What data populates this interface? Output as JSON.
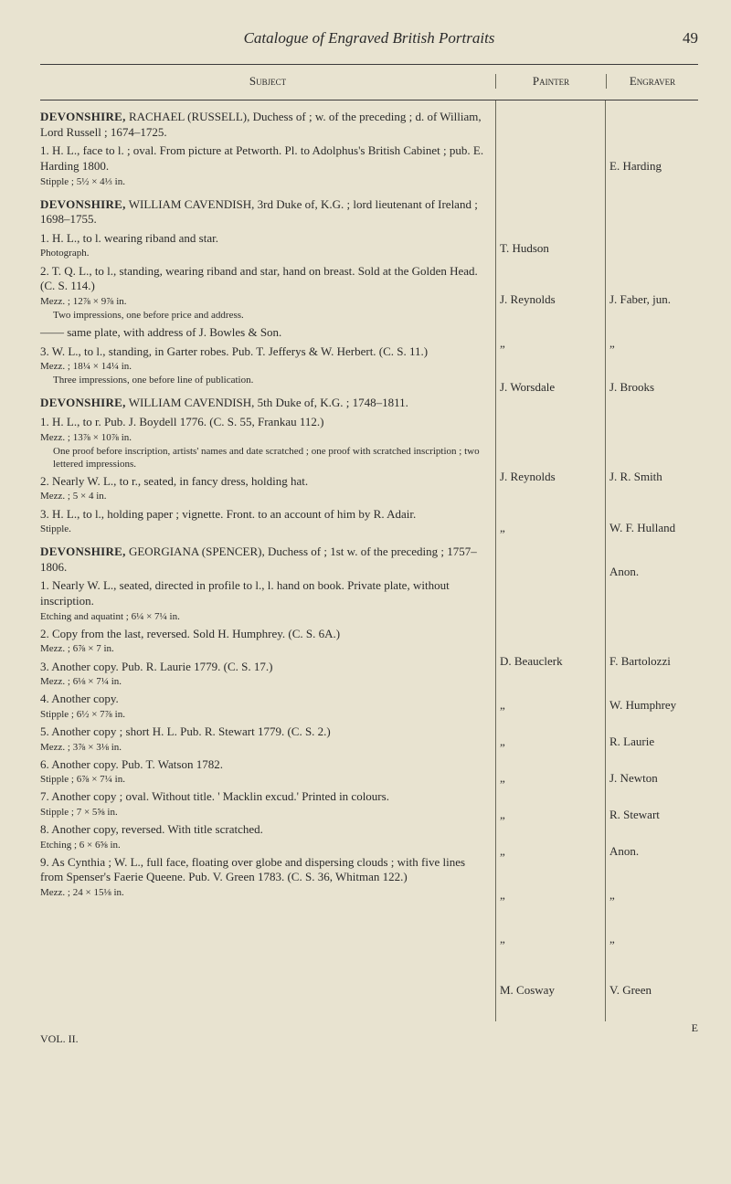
{
  "header": {
    "running_head": "Catalogue of Engraved British Portraits",
    "page_number": "49"
  },
  "columns": {
    "subject": "Subject",
    "painter": "Painter",
    "engraver": "Engraver"
  },
  "entries": [
    {
      "heading_name": "DEVONSHIRE,",
      "heading_rest": " RACHAEL (RUSSELL), Duchess of ; w. of the preceding ; d. of William, Lord Russell ; 1674–1725.",
      "items": [
        {
          "text": "1. H. L., face to l. ; oval. From picture at Petworth. Pl. to Adolphus's British Cabinet ; pub. E. Harding 1800.",
          "tech": "Stipple ; 5½ × 4⅓ in.",
          "painter": "",
          "engraver": "E. Harding"
        }
      ]
    },
    {
      "heading_name": "DEVONSHIRE,",
      "heading_rest": " WILLIAM CAVENDISH, 3rd Duke of, K.G. ; lord lieutenant of Ireland ; 1698–1755.",
      "items": [
        {
          "text": "1. H. L., to l. wearing riband and star.",
          "tech": "Photograph.",
          "painter": "T. Hudson",
          "engraver": ""
        },
        {
          "text": "2. T. Q. L., to l., standing, wearing riband and star, hand on breast. Sold at the Golden Head. (C. S. 114.)",
          "tech": "Mezz. ; 12⅞ × 9⅞ in.",
          "note": "Two impressions, one before price and address.",
          "painter": "J. Reynolds",
          "engraver": "J. Faber, jun."
        },
        {
          "text": "—— same plate, with address of J. Bowles & Son.",
          "painter": "„",
          "engraver": "„"
        },
        {
          "text": "3. W. L., to l., standing, in Garter robes. Pub. T. Jefferys & W. Herbert. (C. S. 11.)",
          "tech": "Mezz. ; 18¼ × 14¼ in.",
          "note": "Three impressions, one before line of publication.",
          "painter": "J. Worsdale",
          "engraver": "J. Brooks"
        }
      ]
    },
    {
      "heading_name": "DEVONSHIRE,",
      "heading_rest": " WILLIAM CAVENDISH, 5th Duke of, K.G. ; 1748–1811.",
      "items": [
        {
          "text": "1. H. L., to r. Pub. J. Boydell 1776. (C. S. 55, Frankau 112.)",
          "tech": "Mezz. ; 13⅞ × 10⅞ in.",
          "note": "One proof before inscription, artists' names and date scratched ; one proof with scratched inscription ; two lettered impressions.",
          "painter": "J. Reynolds",
          "engraver": "J. R. Smith"
        },
        {
          "text": "2. Nearly W. L., to r., seated, in fancy dress, holding hat.",
          "tech": "Mezz. ; 5 × 4 in.",
          "painter": "„",
          "engraver": "W. F. Hulland"
        },
        {
          "text": "3. H. L., to l., holding paper ; vignette. Front. to an account of him by R. Adair.",
          "tech": "Stipple.",
          "painter": "",
          "engraver": "Anon."
        }
      ]
    },
    {
      "heading_name": "DEVONSHIRE,",
      "heading_rest": " GEORGIANA (SPENCER), Duchess of ; 1st w. of the preceding ; 1757–1806.",
      "items": [
        {
          "text": "1. Nearly W. L., seated, directed in profile to l., l. hand on book. Private plate, without inscription.",
          "tech": "Etching and aquatint ; 6¼ × 7¼ in.",
          "painter": "D. Beauclerk",
          "engraver": "F. Bartolozzi"
        },
        {
          "text": "2. Copy from the last, reversed. Sold H. Humphrey. (C. S. 6A.)",
          "tech": "Mezz. ; 6⅞ × 7 in.",
          "painter": "„",
          "engraver": "W. Humphrey"
        },
        {
          "text": "3. Another copy. Pub. R. Laurie 1779. (C. S. 17.)",
          "tech": "Mezz. ; 6⅛ × 7¼ in.",
          "painter": "„",
          "engraver": "R. Laurie"
        },
        {
          "text": "4. Another copy.",
          "tech": "Stipple ; 6½ × 7⅞ in.",
          "painter": "„",
          "engraver": "J. Newton"
        },
        {
          "text": "5. Another copy ; short H. L. Pub. R. Stewart 1779. (C. S. 2.)",
          "tech": "Mezz. ; 3⅞ × 3⅛ in.",
          "painter": "„",
          "engraver": "R. Stewart"
        },
        {
          "text": "6. Another copy. Pub. T. Watson 1782.",
          "tech": "Stipple ; 6⅞ × 7¼ in.",
          "painter": "„",
          "engraver": "Anon."
        },
        {
          "text": "7. Another copy ; oval. Without title. ' Macklin excud.' Printed in colours.",
          "tech": "Stipple ; 7 × 5⅝ in.",
          "painter": "„",
          "engraver": "„"
        },
        {
          "text": "8. Another copy, reversed. With title scratched.",
          "tech": "Etching ; 6 × 6⅝ in.",
          "painter": "„",
          "engraver": "„"
        },
        {
          "text": "9. As Cynthia ; W. L., full face, floating over globe and dispersing clouds ; with five lines from Spenser's Faerie Queene. Pub. V. Green 1783. (C. S. 36, Whitman 122.)",
          "tech": "Mezz. ; 24 × 15⅛ in.",
          "painter": "M. Cosway",
          "engraver": "V. Green"
        }
      ]
    }
  ],
  "footer": {
    "vol": "VOL. II.",
    "sig": "E"
  }
}
